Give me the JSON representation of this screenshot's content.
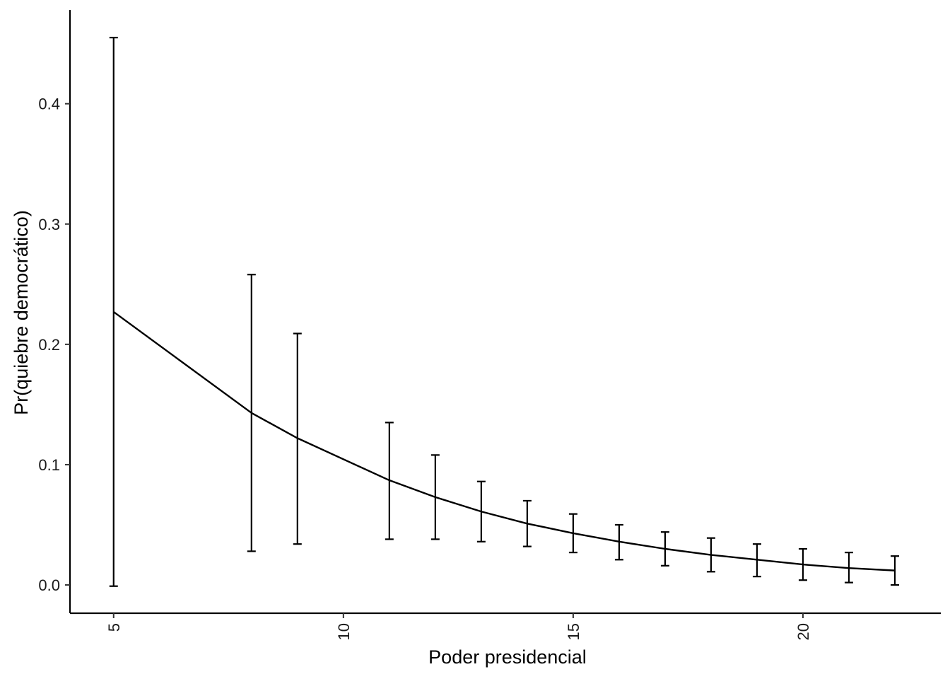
{
  "chart_data": {
    "type": "line",
    "title": "",
    "xlabel": "Poder presidencial",
    "ylabel": "Pr(quiebre democrático)",
    "xlim": [
      4.05,
      23.0
    ],
    "ylim": [
      -0.0235,
      0.478
    ],
    "x_ticks": [
      5,
      10,
      15,
      20
    ],
    "x_tick_labels": [
      "5",
      "10",
      "15",
      "20"
    ],
    "x_tick_label_rotation": "vertical",
    "y_ticks": [
      0.0,
      0.1,
      0.2,
      0.3,
      0.4
    ],
    "y_tick_labels": [
      "0.0",
      "0.1",
      "0.2",
      "0.3",
      "0.4"
    ],
    "grid": false,
    "legend": "none",
    "series": [
      {
        "style": "line with error bars",
        "color": "#000000",
        "x": [
          5,
          8,
          9,
          11,
          12,
          13,
          14,
          15,
          16,
          17,
          18,
          19,
          20,
          21,
          22
        ],
        "y": [
          0.227,
          0.143,
          0.122,
          0.087,
          0.073,
          0.061,
          0.051,
          0.043,
          0.036,
          0.03,
          0.025,
          0.021,
          0.017,
          0.014,
          0.012
        ],
        "lower": [
          -0.001,
          0.028,
          0.034,
          0.038,
          0.038,
          0.036,
          0.032,
          0.027,
          0.021,
          0.016,
          0.011,
          0.007,
          0.004,
          0.002,
          0.0
        ],
        "upper": [
          0.455,
          0.258,
          0.209,
          0.135,
          0.108,
          0.086,
          0.07,
          0.059,
          0.05,
          0.044,
          0.039,
          0.034,
          0.03,
          0.027,
          0.024
        ]
      }
    ]
  }
}
